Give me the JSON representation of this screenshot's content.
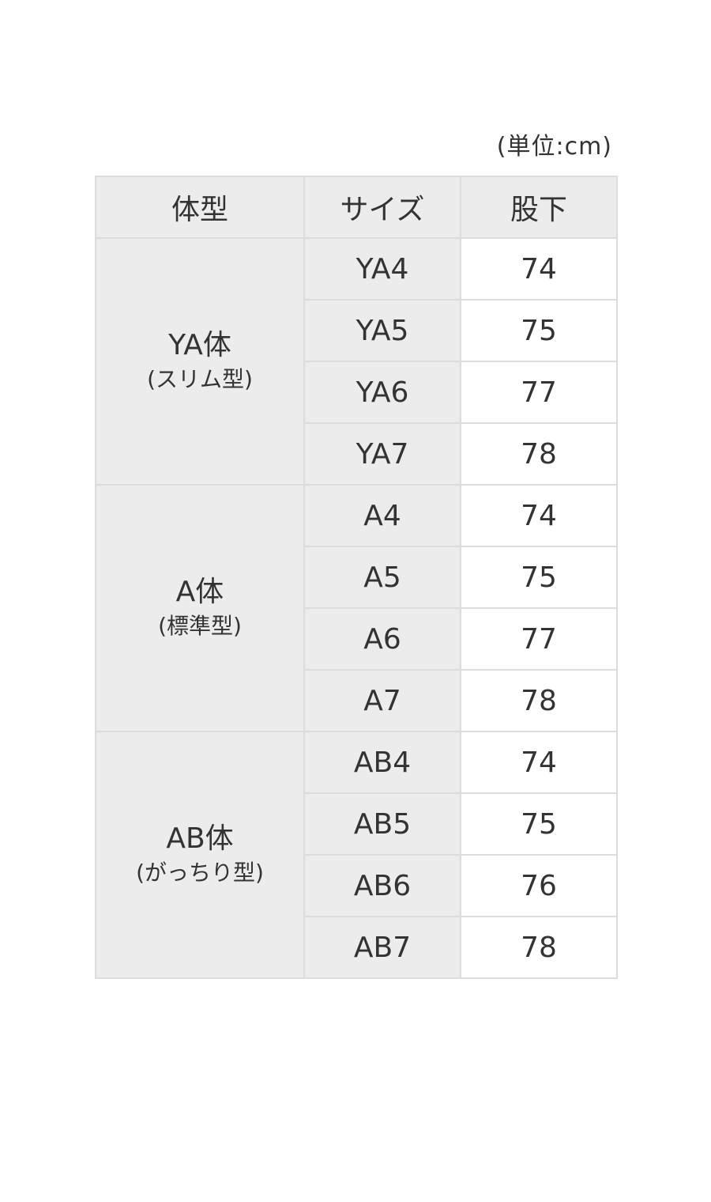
{
  "unit_label": "(単位:cm)",
  "headers": {
    "body_type": "体型",
    "size": "サイズ",
    "inseam": "股下"
  },
  "groups": [
    {
      "name": "YA体",
      "sub": "(スリム型)",
      "rows": [
        {
          "size": "YA4",
          "inseam": "74"
        },
        {
          "size": "YA5",
          "inseam": "75"
        },
        {
          "size": "YA6",
          "inseam": "77"
        },
        {
          "size": "YA7",
          "inseam": "78"
        }
      ]
    },
    {
      "name": "A体",
      "sub": "(標準型)",
      "rows": [
        {
          "size": "A4",
          "inseam": "74"
        },
        {
          "size": "A5",
          "inseam": "75"
        },
        {
          "size": "A6",
          "inseam": "77"
        },
        {
          "size": "A7",
          "inseam": "78"
        }
      ]
    },
    {
      "name": "AB体",
      "sub": "(がっちり型)",
      "rows": [
        {
          "size": "AB4",
          "inseam": "74"
        },
        {
          "size": "AB5",
          "inseam": "75"
        },
        {
          "size": "AB6",
          "inseam": "76"
        },
        {
          "size": "AB7",
          "inseam": "78"
        }
      ]
    }
  ]
}
